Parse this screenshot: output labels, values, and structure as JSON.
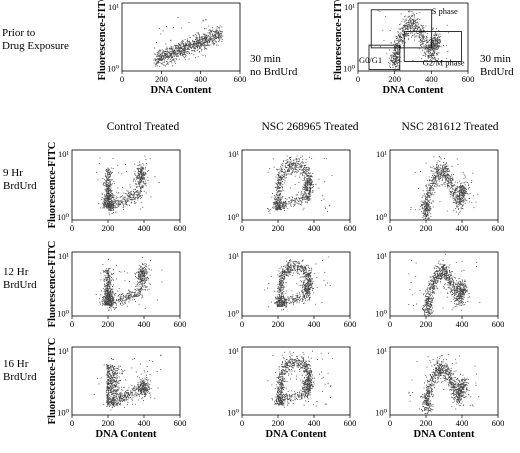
{
  "figure": {
    "row_labels": [
      [
        "Prior to",
        "Drug Exposure"
      ],
      [
        "9 Hr",
        "BrdUrd"
      ],
      [
        "12 Hr",
        "BrdUrd"
      ],
      [
        "16 Hr",
        "BrdUrd"
      ]
    ],
    "column_headers": [
      "Control Treated",
      "NSC 268965 Treated",
      "NSC 281612 Treated"
    ],
    "top_notes": {
      "left": [
        "30 min",
        "no BrdUrd"
      ],
      "right": [
        "30 min",
        "BrdUrd"
      ]
    }
  },
  "chart_data": [
    {
      "type": "scatter",
      "id": "p0",
      "title": "30 min no BrdUrd",
      "xlabel": "DNA Content",
      "ylabel": "Fluorescence-FITC",
      "xlim": [
        0,
        600
      ],
      "xticks": [
        0,
        200,
        400,
        600
      ],
      "ylim_decades": [
        0,
        2
      ],
      "yticks": [
        "10⁰",
        "10¹"
      ],
      "distribution": {
        "kind": "diagonal-band",
        "x_from": 170,
        "x_to": 500
      }
    },
    {
      "type": "scatter",
      "id": "p1",
      "title": "30 min BrdUrd",
      "xlabel": "DNA Content",
      "ylabel": "Fluorescence-FITC",
      "xlim": [
        0,
        600
      ],
      "xticks": [
        0,
        200,
        400,
        600
      ],
      "ylim_decades": [
        0,
        2
      ],
      "yticks": [
        "10⁰",
        "10¹"
      ],
      "gates": [
        "S phase",
        "G0/G1",
        "G2/M phase"
      ],
      "distribution": {
        "kind": "arch",
        "g1_x": 200,
        "g2_x": 420
      }
    },
    {
      "type": "scatter",
      "id": "c9",
      "title": "Control Treated — 9 Hr BrdUrd",
      "xlabel": "",
      "ylabel": "Fluorescence-FITC",
      "xlim": [
        0,
        600
      ],
      "xticks": [
        0,
        200,
        400,
        600
      ],
      "ylim_decades": [
        0,
        2
      ],
      "yticks": [
        "10⁰",
        "10¹"
      ],
      "distribution": {
        "kind": "u-shape",
        "g1_x": 200,
        "g2_x": 380
      }
    },
    {
      "type": "scatter",
      "id": "a9",
      "title": "NSC 268965 Treated — 9 Hr BrdUrd",
      "xlabel": "",
      "ylabel": "",
      "xlim": [
        0,
        600
      ],
      "xticks": [
        0,
        200,
        400,
        600
      ],
      "ylim_decades": [
        0,
        2
      ],
      "yticks": [
        "10⁰",
        "10¹"
      ],
      "distribution": {
        "kind": "hook",
        "g1_x": 200,
        "g2_x": 360
      }
    },
    {
      "type": "scatter",
      "id": "b9",
      "title": "NSC 281612 Treated — 9 Hr BrdUrd",
      "xlabel": "",
      "ylabel": "",
      "xlim": [
        0,
        600
      ],
      "xticks": [
        0,
        200,
        400,
        600
      ],
      "ylim_decades": [
        0,
        2
      ],
      "yticks": [
        "10⁰",
        "10¹"
      ],
      "distribution": {
        "kind": "arch",
        "g1_x": 200,
        "g2_x": 400
      }
    },
    {
      "type": "scatter",
      "id": "c12",
      "title": "Control Treated — 12 Hr BrdUrd",
      "xlabel": "",
      "ylabel": "Fluorescence-FITC",
      "xlim": [
        0,
        600
      ],
      "xticks": [
        0,
        200,
        400,
        600
      ],
      "ylim_decades": [
        0,
        2
      ],
      "yticks": [
        "10⁰",
        "10¹"
      ],
      "distribution": {
        "kind": "u-shape",
        "g1_x": 200,
        "g2_x": 390
      }
    },
    {
      "type": "scatter",
      "id": "a12",
      "title": "NSC 268965 Treated — 12 Hr BrdUrd",
      "xlabel": "",
      "ylabel": "",
      "xlim": [
        0,
        600
      ],
      "xticks": [
        0,
        200,
        400,
        600
      ],
      "ylim_decades": [
        0,
        2
      ],
      "yticks": [
        "10⁰",
        "10¹"
      ],
      "distribution": {
        "kind": "hook",
        "g1_x": 210,
        "g2_x": 360
      }
    },
    {
      "type": "scatter",
      "id": "b12",
      "title": "NSC 281612 Treated — 12 Hr BrdUrd",
      "xlabel": "",
      "ylabel": "",
      "xlim": [
        0,
        600
      ],
      "xticks": [
        0,
        200,
        400,
        600
      ],
      "ylim_decades": [
        0,
        2
      ],
      "yticks": [
        "10⁰",
        "10¹"
      ],
      "distribution": {
        "kind": "arch",
        "g1_x": 210,
        "g2_x": 400
      }
    },
    {
      "type": "scatter",
      "id": "c16",
      "title": "Control Treated — 16 Hr BrdUrd",
      "xlabel": "DNA Content",
      "ylabel": "Fluorescence-FITC",
      "xlim": [
        0,
        600
      ],
      "xticks": [
        0,
        200,
        400,
        600
      ],
      "ylim_decades": [
        0,
        2
      ],
      "yticks": [
        "10⁰",
        "10¹"
      ],
      "distribution": {
        "kind": "blob-band",
        "g1_x": 200,
        "g2_x": 400
      }
    },
    {
      "type": "scatter",
      "id": "a16",
      "title": "NSC 268965 Treated — 16 Hr BrdUrd",
      "xlabel": "DNA Content",
      "ylabel": "",
      "xlim": [
        0,
        600
      ],
      "xticks": [
        0,
        200,
        400,
        600
      ],
      "ylim_decades": [
        0,
        2
      ],
      "yticks": [
        "10⁰",
        "10¹"
      ],
      "distribution": {
        "kind": "hook",
        "g1_x": 210,
        "g2_x": 360
      }
    },
    {
      "type": "scatter",
      "id": "b16",
      "title": "NSC 281612 Treated — 16 Hr BrdUrd",
      "xlabel": "DNA Content",
      "ylabel": "",
      "xlim": [
        0,
        600
      ],
      "xticks": [
        0,
        200,
        400,
        600
      ],
      "ylim_decades": [
        0,
        2
      ],
      "yticks": [
        "10⁰",
        "10¹"
      ],
      "distribution": {
        "kind": "arch",
        "g1_x": 200,
        "g2_x": 400
      }
    }
  ]
}
